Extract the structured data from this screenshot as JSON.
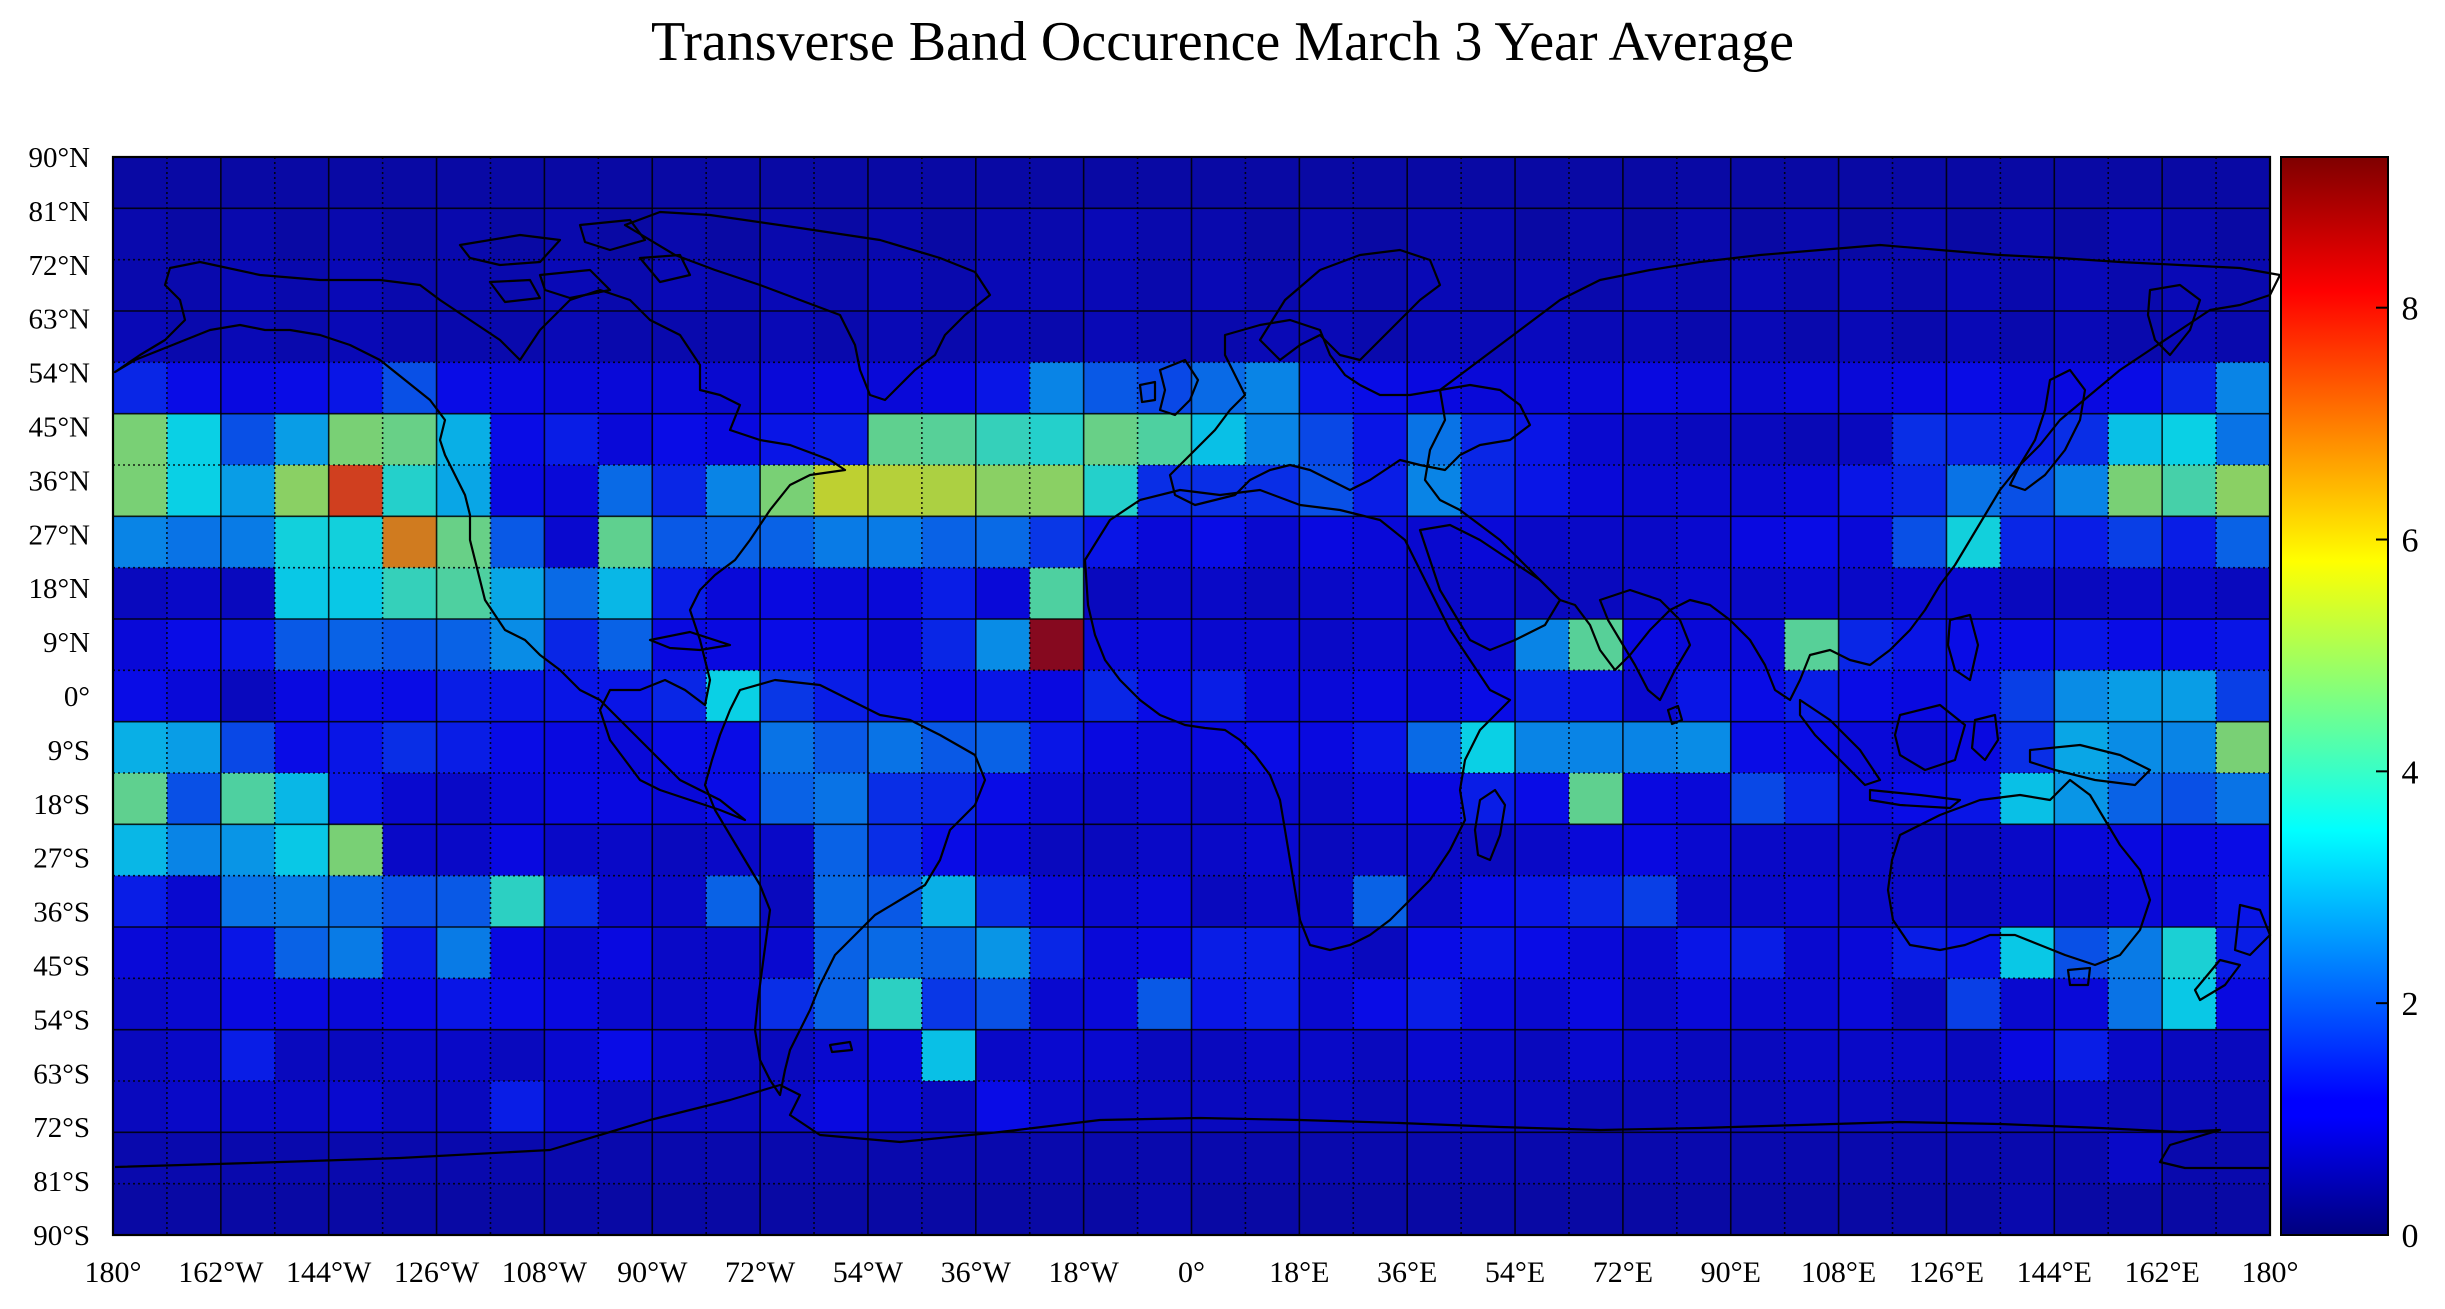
{
  "title": "Transverse Band Occurence March 3 Year Average",
  "chart_data": {
    "type": "heatmap",
    "title": "Transverse Band Occurence March 3 Year Average",
    "x_tick_labels": [
      "180°",
      "162°W",
      "144°W",
      "126°W",
      "108°W",
      "90°W",
      "72°W",
      "54°W",
      "36°W",
      "18°W",
      "0°",
      "18°E",
      "36°E",
      "54°E",
      "72°E",
      "90°E",
      "108°E",
      "126°E",
      "144°E",
      "162°E",
      "180°"
    ],
    "y_tick_labels": [
      "90°N",
      "81°N",
      "72°N",
      "63°N",
      "54°N",
      "45°N",
      "36°N",
      "27°N",
      "18°N",
      "9°N",
      "0°",
      "9°S",
      "18°S",
      "27°S",
      "36°S",
      "45°S",
      "54°S",
      "63°S",
      "72°S",
      "81°S",
      "90°S"
    ],
    "lon_range": [
      -180,
      180
    ],
    "lat_range": [
      -90,
      90
    ],
    "cell_size_deg": 9,
    "colorbar": {
      "range": [
        0,
        9.3
      ],
      "ticks": [
        "0",
        "2",
        "4",
        "6",
        "8"
      ],
      "colormap": "jet"
    },
    "grid": true,
    "rows_north_to_south": [
      [
        0.4,
        0.4,
        0.4,
        0.4,
        0.4,
        0.4,
        0.4,
        0.4,
        0.4,
        0.4,
        0.4,
        0.4,
        0.4,
        0.4,
        0.4,
        0.4,
        0.4,
        0.4,
        0.4,
        0.4,
        0.4,
        0.4,
        0.4,
        0.4,
        0.4,
        0.4,
        0.4,
        0.4,
        0.4,
        0.4,
        0.4,
        0.4,
        0.4,
        0.4,
        0.4,
        0.4,
        0.4,
        0.4,
        0.4,
        0.4
      ],
      [
        0.5,
        0.4,
        0.5,
        0.4,
        0.5,
        0.4,
        0.5,
        0.4,
        0.5,
        0.4,
        0.5,
        0.4,
        0.5,
        0.4,
        0.5,
        0.4,
        0.5,
        0.5,
        0.6,
        0.5,
        0.5,
        0.4,
        0.5,
        0.4,
        0.5,
        0.5,
        0.4,
        0.5,
        0.4,
        0.5,
        0.4,
        0.5,
        0.4,
        0.5,
        0.4,
        0.5,
        0.4,
        0.6,
        0.5,
        0.4
      ],
      [
        0.5,
        0.5,
        0.6,
        0.5,
        0.6,
        0.5,
        0.5,
        0.5,
        0.6,
        0.5,
        0.6,
        0.5,
        0.6,
        0.5,
        0.6,
        0.5,
        0.6,
        0.6,
        0.6,
        0.5,
        0.6,
        0.5,
        0.6,
        0.5,
        0.6,
        0.5,
        0.6,
        0.5,
        0.6,
        0.5,
        0.6,
        0.5,
        0.6,
        0.5,
        0.6,
        0.5,
        0.6,
        0.5,
        0.6,
        0.5
      ],
      [
        0.6,
        0.5,
        0.6,
        0.5,
        0.6,
        0.5,
        0.5,
        0.5,
        0.6,
        0.5,
        0.5,
        0.5,
        0.6,
        0.5,
        0.6,
        0.5,
        0.6,
        0.5,
        0.6,
        0.5,
        0.5,
        0.6,
        0.6,
        0.5,
        0.6,
        0.6,
        0.7,
        0.6,
        0.6,
        0.5,
        0.6,
        0.5,
        0.6,
        0.5,
        0.6,
        0.5,
        0.6,
        0.5,
        0.6,
        0.5
      ],
      [
        1.5,
        1.2,
        1.1,
        1.2,
        1.3,
        2.0,
        1.2,
        1.1,
        1.0,
        1.0,
        1.0,
        0.9,
        1.0,
        1.1,
        1.0,
        1.1,
        1.3,
        2.6,
        2.1,
        1.9,
        2.3,
        2.6,
        1.3,
        1.2,
        1.1,
        1.0,
        1.0,
        1.0,
        1.1,
        1.0,
        0.9,
        1.0,
        1.0,
        1.1,
        1.2,
        1.0,
        1.1,
        1.2,
        1.5,
        2.6
      ],
      [
        4.8,
        3.5,
        2.0,
        2.9,
        4.8,
        4.6,
        3.1,
        1.2,
        1.4,
        1.0,
        1.2,
        1.1,
        1.3,
        1.4,
        4.5,
        4.4,
        4.0,
        3.8,
        4.6,
        4.3,
        3.3,
        2.6,
        1.9,
        1.3,
        2.4,
        1.5,
        1.3,
        0.9,
        0.8,
        0.7,
        0.7,
        0.6,
        0.7,
        1.6,
        1.5,
        1.4,
        1.6,
        3.3,
        3.5,
        2.4
      ],
      [
        4.8,
        3.5,
        2.9,
        5.0,
        7.5,
        3.8,
        3.0,
        1.1,
        1.0,
        2.3,
        1.5,
        2.6,
        4.8,
        5.6,
        5.5,
        5.4,
        5.0,
        5.0,
        3.8,
        1.6,
        1.6,
        1.6,
        2.0,
        1.4,
        2.6,
        1.5,
        1.3,
        1.0,
        0.9,
        0.9,
        0.9,
        1.0,
        1.3,
        1.5,
        2.4,
        2.0,
        2.6,
        4.8,
        4.2,
        5.0
      ],
      [
        2.6,
        2.4,
        2.5,
        3.6,
        3.6,
        6.8,
        4.6,
        2.1,
        0.9,
        4.5,
        2.1,
        2.2,
        2.2,
        2.5,
        2.5,
        2.2,
        2.3,
        1.7,
        1.3,
        1.0,
        1.2,
        0.9,
        1.1,
        1.0,
        0.9,
        1.0,
        0.8,
        0.8,
        0.8,
        0.9,
        1.1,
        1.2,
        1.0,
        2.0,
        3.6,
        1.5,
        1.4,
        1.8,
        1.4,
        2.2
      ],
      [
        0.7,
        0.8,
        0.7,
        3.4,
        3.4,
        4.0,
        4.3,
        3.0,
        2.3,
        3.2,
        1.4,
        1.0,
        1.1,
        1.0,
        1.0,
        1.4,
        1.0,
        4.3,
        0.7,
        0.8,
        0.8,
        0.7,
        0.8,
        0.9,
        0.8,
        0.8,
        0.7,
        0.7,
        0.8,
        0.9,
        0.8,
        0.9,
        0.8,
        0.9,
        0.9,
        0.7,
        0.7,
        0.8,
        0.8,
        0.7
      ],
      [
        1.0,
        1.2,
        1.3,
        2.1,
        2.2,
        2.1,
        2.2,
        2.7,
        1.5,
        2.2,
        1.1,
        1.1,
        1.2,
        1.2,
        1.0,
        1.5,
        2.7,
        9.0,
        1.0,
        1.0,
        0.9,
        0.9,
        0.8,
        0.9,
        0.9,
        0.9,
        2.6,
        4.4,
        1.1,
        1.0,
        1.0,
        4.4,
        1.5,
        1.3,
        1.2,
        1.2,
        1.3,
        1.2,
        1.2,
        1.3
      ],
      [
        1.2,
        1.0,
        0.7,
        1.1,
        1.2,
        1.2,
        1.4,
        1.3,
        1.3,
        1.3,
        1.5,
        3.5,
        1.7,
        1.4,
        1.3,
        1.2,
        1.3,
        1.1,
        1.5,
        1.2,
        1.4,
        1.0,
        1.0,
        1.1,
        1.0,
        1.2,
        1.4,
        1.3,
        0.9,
        1.3,
        1.2,
        1.4,
        1.2,
        1.1,
        1.3,
        1.8,
        2.7,
        2.9,
        2.9,
        1.8
      ],
      [
        3.1,
        2.9,
        1.9,
        1.2,
        1.3,
        1.6,
        1.4,
        1.2,
        1.1,
        1.0,
        1.2,
        1.2,
        2.4,
        2.1,
        2.4,
        2.1,
        2.2,
        1.3,
        1.1,
        1.0,
        1.1,
        1.2,
        1.1,
        1.3,
        2.3,
        3.5,
        2.6,
        2.6,
        2.6,
        2.7,
        1.2,
        1.2,
        1.0,
        0.9,
        1.1,
        1.6,
        3.0,
        2.7,
        2.6,
        4.8
      ],
      [
        4.5,
        2.0,
        4.3,
        3.2,
        1.3,
        0.9,
        0.8,
        1.0,
        1.1,
        1.1,
        1.0,
        1.2,
        2.2,
        2.4,
        1.6,
        1.5,
        1.2,
        0.9,
        0.8,
        0.9,
        0.8,
        0.9,
        0.8,
        1.0,
        1.1,
        1.4,
        1.2,
        4.5,
        1.1,
        1.0,
        1.9,
        1.5,
        1.0,
        1.2,
        1.3,
        3.3,
        2.8,
        2.2,
        2.0,
        2.4
      ],
      [
        3.2,
        2.6,
        2.8,
        3.4,
        4.8,
        0.8,
        0.8,
        1.1,
        0.8,
        0.8,
        0.7,
        0.8,
        0.8,
        2.2,
        1.6,
        1.2,
        1.0,
        0.7,
        0.7,
        0.8,
        0.8,
        0.9,
        0.7,
        0.8,
        0.8,
        0.7,
        0.8,
        1.0,
        1.1,
        0.9,
        0.8,
        0.8,
        0.8,
        0.7,
        0.7,
        0.8,
        1.0,
        1.1,
        1.1,
        1.2
      ],
      [
        1.4,
        0.9,
        2.4,
        2.5,
        2.3,
        2.0,
        2.1,
        3.9,
        1.6,
        0.9,
        0.8,
        2.2,
        0.7,
        2.3,
        2.1,
        3.1,
        1.6,
        1.0,
        0.9,
        1.0,
        0.7,
        0.8,
        0.8,
        2.2,
        0.8,
        1.2,
        1.3,
        1.5,
        1.8,
        0.8,
        0.8,
        0.9,
        0.8,
        0.8,
        0.7,
        0.8,
        0.8,
        1.0,
        1.0,
        1.3
      ],
      [
        1.0,
        0.9,
        1.3,
        2.2,
        2.5,
        1.4,
        2.5,
        1.1,
        0.9,
        1.1,
        0.8,
        0.8,
        0.9,
        2.2,
        2.3,
        2.2,
        2.8,
        1.5,
        1.0,
        1.1,
        1.4,
        1.4,
        0.9,
        0.7,
        1.2,
        1.3,
        1.2,
        1.0,
        0.9,
        1.3,
        1.4,
        0.9,
        1.0,
        1.4,
        1.3,
        3.4,
        2.0,
        2.5,
        3.7,
        1.4
      ],
      [
        0.8,
        0.9,
        1.1,
        1.1,
        1.0,
        1.1,
        1.3,
        1.2,
        1.1,
        0.9,
        0.8,
        0.9,
        1.6,
        2.2,
        3.9,
        1.7,
        2.0,
        0.9,
        1.0,
        2.1,
        1.3,
        1.4,
        0.9,
        1.2,
        1.4,
        1.0,
        0.9,
        1.1,
        0.8,
        1.0,
        0.9,
        0.9,
        1.0,
        0.7,
        1.8,
        0.9,
        1.0,
        2.4,
        3.4,
        1.1
      ],
      [
        0.7,
        0.8,
        1.4,
        0.7,
        0.7,
        0.8,
        0.8,
        0.7,
        0.9,
        1.2,
        0.9,
        0.7,
        0.7,
        0.9,
        1.0,
        3.3,
        0.8,
        0.9,
        0.9,
        0.7,
        0.7,
        0.8,
        0.8,
        0.7,
        0.9,
        0.8,
        0.7,
        0.9,
        0.8,
        0.7,
        0.7,
        0.8,
        0.8,
        0.8,
        0.7,
        1.1,
        1.4,
        0.8,
        0.7,
        0.7
      ],
      [
        0.7,
        0.8,
        0.8,
        0.8,
        0.9,
        0.7,
        0.7,
        1.4,
        0.9,
        0.7,
        0.7,
        0.7,
        0.8,
        1.1,
        0.9,
        0.7,
        1.2,
        0.8,
        0.7,
        0.7,
        0.7,
        0.7,
        0.7,
        0.6,
        0.7,
        0.7,
        0.7,
        0.6,
        0.6,
        0.6,
        0.6,
        0.7,
        0.7,
        0.6,
        0.7,
        0.6,
        0.7,
        0.6,
        0.6,
        0.6
      ],
      [
        0.5,
        0.5,
        0.5,
        0.5,
        0.5,
        0.5,
        0.5,
        0.5,
        0.5,
        0.5,
        0.5,
        0.5,
        0.5,
        0.5,
        0.5,
        0.5,
        0.5,
        0.5,
        0.5,
        0.5,
        0.5,
        0.5,
        0.5,
        0.5,
        0.5,
        0.5,
        0.5,
        0.5,
        0.5,
        0.5,
        0.5,
        0.5,
        0.5,
        0.5,
        0.5,
        0.5,
        0.5,
        0.8,
        0.5,
        0.5
      ],
      [
        0.4,
        0.4,
        0.4,
        0.4,
        0.4,
        0.4,
        0.4,
        0.4,
        0.4,
        0.4,
        0.4,
        0.4,
        0.4,
        0.4,
        0.4,
        0.4,
        0.4,
        0.4,
        0.4,
        0.5,
        0.4,
        0.4,
        0.4,
        0.4,
        0.4,
        0.4,
        0.4,
        0.4,
        0.4,
        0.4,
        0.4,
        0.4,
        0.4,
        0.4,
        0.4,
        0.5,
        0.4,
        0.4,
        0.4,
        0.4
      ]
    ]
  }
}
